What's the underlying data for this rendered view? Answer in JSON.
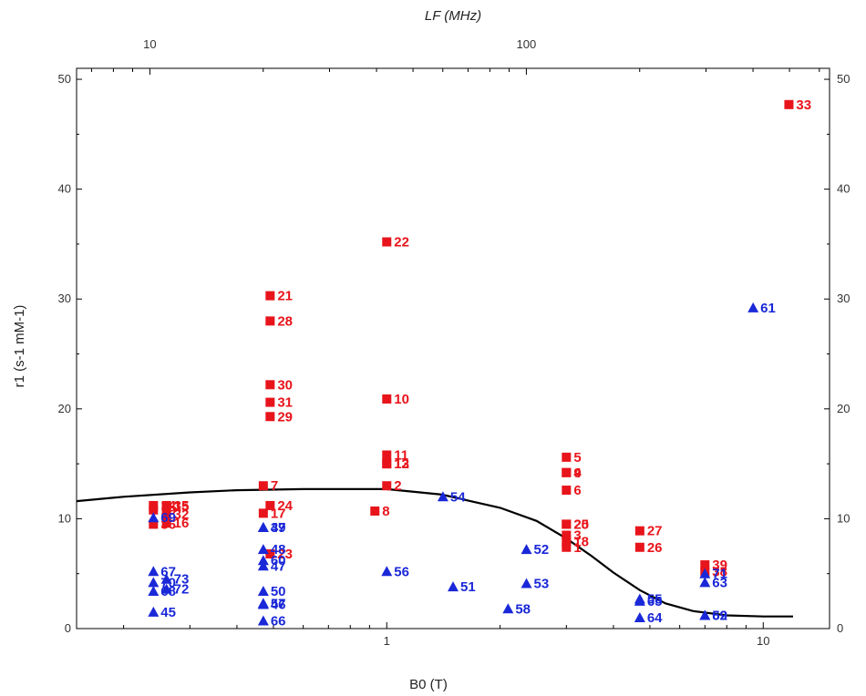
{
  "chart_data": {
    "type": "scatter",
    "xlabel": "B0 (T)",
    "top_xlabel": "LF (MHz)",
    "ylabel": "r1 (s-1 mM-1)",
    "x_scale": "log",
    "xlim": [
      0.15,
      15
    ],
    "ylim": [
      0,
      51
    ],
    "grid": false,
    "bottom_ticks": [
      {
        "value": 1,
        "label": "1"
      },
      {
        "value": 10,
        "label": "10"
      }
    ],
    "top_ticks": [
      {
        "value": 10,
        "label": "10"
      },
      {
        "value": 100,
        "label": "100"
      }
    ],
    "y_ticks": [
      0,
      10,
      20,
      30,
      40,
      50
    ],
    "colors": {
      "square": "#e8141b",
      "triangle": "#1a28d8",
      "curve": "#000000"
    },
    "series": [
      {
        "marker": "square",
        "color": "#e8141b",
        "points": [
          {
            "label": "33",
            "x": 11.7,
            "y": 47.7
          },
          {
            "label": "22",
            "x": 1.0,
            "y": 35.2
          },
          {
            "label": "21",
            "x": 0.49,
            "y": 30.3
          },
          {
            "label": "28",
            "x": 0.49,
            "y": 28.0
          },
          {
            "label": "30",
            "x": 0.49,
            "y": 22.2
          },
          {
            "label": "10",
            "x": 1.0,
            "y": 20.9
          },
          {
            "label": "31",
            "x": 0.49,
            "y": 20.6
          },
          {
            "label": "29",
            "x": 0.49,
            "y": 19.3
          },
          {
            "label": "5",
            "x": 3.0,
            "y": 15.6
          },
          {
            "label": "11",
            "x": 1.0,
            "y": 15.8
          },
          {
            "label": "13",
            "x": 1.0,
            "y": 15.0
          },
          {
            "label": "12",
            "x": 1.0,
            "y": 15.0
          },
          {
            "label": "9",
            "x": 3.0,
            "y": 14.2
          },
          {
            "label": "4",
            "x": 3.0,
            "y": 14.2
          },
          {
            "label": "7",
            "x": 0.47,
            "y": 13.0
          },
          {
            "label": "2",
            "x": 1.0,
            "y": 13.0
          },
          {
            "label": "14",
            "x": 0.24,
            "y": 11.2
          },
          {
            "label": "35",
            "x": 0.26,
            "y": 11.2
          },
          {
            "label": "6",
            "x": 3.0,
            "y": 12.6
          },
          {
            "label": "19",
            "x": 0.24,
            "y": 10.8
          },
          {
            "label": "15",
            "x": 0.26,
            "y": 11.1
          },
          {
            "label": "24",
            "x": 0.49,
            "y": 11.2
          },
          {
            "label": "17",
            "x": 0.47,
            "y": 10.5
          },
          {
            "label": "32",
            "x": 0.26,
            "y": 10.4
          },
          {
            "label": "8",
            "x": 0.93,
            "y": 10.7
          },
          {
            "label": "25",
            "x": 3.0,
            "y": 9.5
          },
          {
            "label": "36",
            "x": 0.24,
            "y": 9.5
          },
          {
            "label": "16",
            "x": 0.26,
            "y": 9.6
          },
          {
            "label": "20",
            "x": 3.0,
            "y": 9.5
          },
          {
            "label": "27",
            "x": 4.7,
            "y": 8.9
          },
          {
            "label": "3",
            "x": 3.0,
            "y": 8.5
          },
          {
            "label": "18",
            "x": 3.0,
            "y": 7.9
          },
          {
            "label": "1",
            "x": 3.0,
            "y": 7.4
          },
          {
            "label": "26",
            "x": 4.7,
            "y": 7.4
          },
          {
            "label": "23",
            "x": 0.49,
            "y": 6.8
          },
          {
            "label": "39",
            "x": 7.0,
            "y": 5.8
          },
          {
            "label": "38",
            "x": 7.0,
            "y": 5.2
          }
        ]
      },
      {
        "marker": "triangle",
        "color": "#1a28d8",
        "points": [
          {
            "label": "61",
            "x": 9.4,
            "y": 29.2
          },
          {
            "label": "54",
            "x": 1.41,
            "y": 12.0
          },
          {
            "label": "69",
            "x": 0.24,
            "y": 10.1
          },
          {
            "label": "37",
            "x": 0.47,
            "y": 9.2
          },
          {
            "label": "49",
            "x": 0.47,
            "y": 9.2
          },
          {
            "label": "52",
            "x": 2.35,
            "y": 7.2
          },
          {
            "label": "48",
            "x": 0.47,
            "y": 7.2
          },
          {
            "label": "60",
            "x": 0.47,
            "y": 6.2
          },
          {
            "label": "47",
            "x": 0.47,
            "y": 5.7
          },
          {
            "label": "67",
            "x": 0.24,
            "y": 5.2
          },
          {
            "label": "56",
            "x": 1.0,
            "y": 5.2
          },
          {
            "label": "71",
            "x": 7.0,
            "y": 5.0
          },
          {
            "label": "73",
            "x": 0.26,
            "y": 4.5
          },
          {
            "label": "70",
            "x": 0.24,
            "y": 4.2
          },
          {
            "label": "63",
            "x": 7.0,
            "y": 4.2
          },
          {
            "label": "53",
            "x": 2.35,
            "y": 4.1
          },
          {
            "label": "51",
            "x": 1.5,
            "y": 3.8
          },
          {
            "label": "72",
            "x": 0.26,
            "y": 3.6
          },
          {
            "label": "50",
            "x": 0.47,
            "y": 3.4
          },
          {
            "label": "68",
            "x": 0.24,
            "y": 3.4
          },
          {
            "label": "55",
            "x": 4.7,
            "y": 2.7
          },
          {
            "label": "65",
            "x": 4.7,
            "y": 2.5
          },
          {
            "label": "57",
            "x": 0.47,
            "y": 2.3
          },
          {
            "label": "46",
            "x": 0.47,
            "y": 2.2
          },
          {
            "label": "58",
            "x": 2.1,
            "y": 1.8
          },
          {
            "label": "45",
            "x": 0.24,
            "y": 1.5
          },
          {
            "label": "62",
            "x": 7.0,
            "y": 1.2
          },
          {
            "label": "59",
            "x": 7.0,
            "y": 1.2
          },
          {
            "label": "64",
            "x": 4.7,
            "y": 1.0
          },
          {
            "label": "66",
            "x": 0.47,
            "y": 0.7
          }
        ]
      }
    ],
    "curve": {
      "color": "#000000",
      "points": [
        {
          "x": 0.15,
          "y": 11.6
        },
        {
          "x": 0.2,
          "y": 12.0
        },
        {
          "x": 0.3,
          "y": 12.4
        },
        {
          "x": 0.4,
          "y": 12.6
        },
        {
          "x": 0.6,
          "y": 12.7
        },
        {
          "x": 1.0,
          "y": 12.7
        },
        {
          "x": 1.4,
          "y": 12.2
        },
        {
          "x": 2.0,
          "y": 11.0
        },
        {
          "x": 2.5,
          "y": 9.8
        },
        {
          "x": 3.0,
          "y": 8.2
        },
        {
          "x": 3.5,
          "y": 6.6
        },
        {
          "x": 4.0,
          "y": 5.1
        },
        {
          "x": 4.7,
          "y": 3.5
        },
        {
          "x": 5.5,
          "y": 2.3
        },
        {
          "x": 6.5,
          "y": 1.6
        },
        {
          "x": 8.0,
          "y": 1.2
        },
        {
          "x": 10.0,
          "y": 1.1
        },
        {
          "x": 12.0,
          "y": 1.1
        }
      ]
    }
  }
}
